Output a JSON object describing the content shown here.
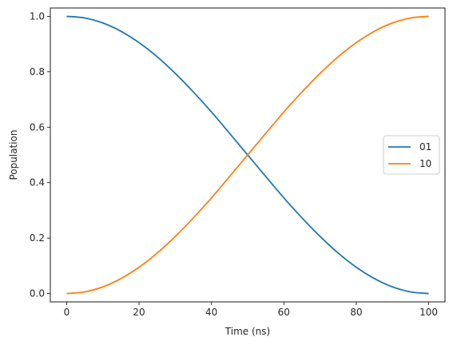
{
  "chart_data": {
    "type": "line",
    "title": "",
    "xlabel": "Time (ns)",
    "ylabel": "Population",
    "xlim": [
      -4.5,
      104.5
    ],
    "ylim": [
      -0.03,
      1.03
    ],
    "xticks": [
      0,
      20,
      40,
      60,
      80,
      100
    ],
    "yticks": [
      0.0,
      0.2,
      0.4,
      0.6,
      0.8,
      1.0
    ],
    "xtick_labels": [
      "0",
      "20",
      "40",
      "60",
      "80",
      "100"
    ],
    "ytick_labels": [
      "0.0",
      "0.2",
      "0.4",
      "0.6",
      "0.8",
      "1.0"
    ],
    "grid": false,
    "legend_position": "center-right",
    "x": [
      0,
      5,
      10,
      15,
      20,
      25,
      30,
      35,
      40,
      45,
      50,
      55,
      60,
      65,
      70,
      75,
      80,
      85,
      90,
      95,
      100
    ],
    "series": [
      {
        "name": "01",
        "color": "#1f77b4",
        "values": [
          1.0,
          0.994,
          0.976,
          0.946,
          0.905,
          0.854,
          0.794,
          0.727,
          0.655,
          0.578,
          0.5,
          0.422,
          0.345,
          0.273,
          0.206,
          0.146,
          0.095,
          0.054,
          0.024,
          0.006,
          0.0
        ]
      },
      {
        "name": "10",
        "color": "#ff7f0e",
        "values": [
          0.0,
          0.006,
          0.024,
          0.054,
          0.095,
          0.146,
          0.206,
          0.273,
          0.345,
          0.422,
          0.5,
          0.578,
          0.655,
          0.727,
          0.794,
          0.854,
          0.905,
          0.946,
          0.976,
          0.994,
          1.0
        ]
      }
    ]
  }
}
